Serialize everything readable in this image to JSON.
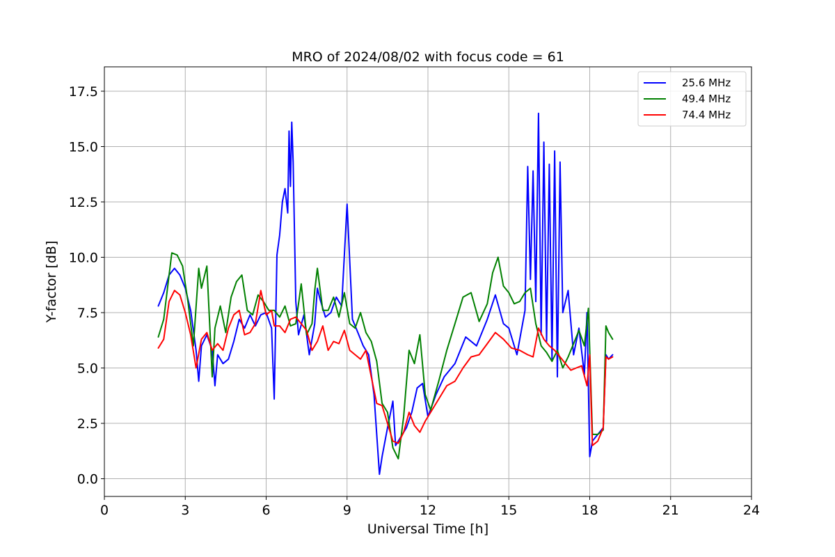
{
  "chart_data": {
    "type": "line",
    "title": "MRO of 2024/08/02 with focus code = 61",
    "xlabel": "Universal Time [h]",
    "ylabel": "Y-factor [dB]",
    "xlim": [
      0,
      24
    ],
    "ylim": [
      -0.8,
      18.6
    ],
    "xticks": [
      0,
      3,
      6,
      9,
      12,
      15,
      18,
      21,
      24
    ],
    "xtick_labels": [
      "0",
      "3",
      "6",
      "9",
      "12",
      "15",
      "18",
      "21",
      "24"
    ],
    "yticks": [
      0.0,
      2.5,
      5.0,
      7.5,
      10.0,
      12.5,
      15.0,
      17.5
    ],
    "ytick_labels": [
      "0.0",
      "2.5",
      "5.0",
      "7.5",
      "10.0",
      "12.5",
      "15.0",
      "17.5"
    ],
    "grid": true,
    "legend_position": "top-right",
    "series": [
      {
        "name": "25.6 MHz",
        "color": "#0000ff",
        "x": [
          2.0,
          2.2,
          2.4,
          2.6,
          2.8,
          3.0,
          3.2,
          3.4,
          3.5,
          3.6,
          3.8,
          4.0,
          4.1,
          4.2,
          4.4,
          4.6,
          4.8,
          5.0,
          5.2,
          5.4,
          5.6,
          5.8,
          6.0,
          6.2,
          6.3,
          6.4,
          6.5,
          6.6,
          6.7,
          6.8,
          6.85,
          6.9,
          6.95,
          7.0,
          7.1,
          7.2,
          7.4,
          7.6,
          7.8,
          7.9,
          8.0,
          8.2,
          8.4,
          8.6,
          8.8,
          9.0,
          9.2,
          9.4,
          9.6,
          9.8,
          10.0,
          10.2,
          10.3,
          10.5,
          10.7,
          10.8,
          11.0,
          11.2,
          11.4,
          11.6,
          11.8,
          12.0,
          12.3,
          12.6,
          13.0,
          13.4,
          13.8,
          14.2,
          14.5,
          14.8,
          15.0,
          15.3,
          15.6,
          15.7,
          15.8,
          15.9,
          16.0,
          16.1,
          16.2,
          16.3,
          16.4,
          16.5,
          16.6,
          16.7,
          16.8,
          16.9,
          17.0,
          17.2,
          17.4,
          17.6,
          17.8,
          17.9,
          18.0,
          18.1,
          18.3,
          18.5,
          18.6,
          18.7,
          18.85
        ],
        "y": [
          7.8,
          8.4,
          9.2,
          9.5,
          9.2,
          8.6,
          7.6,
          5.8,
          4.4,
          6.0,
          6.5,
          5.8,
          4.2,
          5.6,
          5.2,
          5.4,
          6.2,
          7.2,
          6.8,
          7.4,
          6.9,
          7.4,
          7.5,
          6.8,
          3.6,
          10.1,
          11.0,
          12.5,
          13.1,
          12.0,
          15.7,
          13.2,
          16.1,
          14.3,
          8.0,
          6.5,
          7.4,
          5.6,
          7.0,
          8.6,
          8.1,
          7.3,
          7.5,
          8.2,
          7.8,
          12.4,
          7.2,
          6.6,
          6.0,
          5.6,
          3.8,
          0.2,
          1.0,
          2.3,
          3.5,
          1.5,
          1.9,
          2.3,
          3.0,
          4.1,
          4.3,
          2.8,
          3.8,
          4.6,
          5.2,
          6.4,
          6.0,
          7.2,
          8.3,
          7.0,
          6.8,
          5.6,
          7.6,
          14.1,
          9.0,
          13.9,
          8.0,
          16.5,
          6.5,
          15.2,
          6.2,
          14.2,
          5.4,
          14.8,
          4.6,
          14.3,
          7.5,
          8.5,
          5.6,
          6.8,
          4.7,
          7.5,
          1.0,
          1.7,
          2.0,
          2.3,
          5.6,
          5.4,
          5.6
        ]
      },
      {
        "name": "49.4 MHz",
        "color": "#008000",
        "x": [
          2.0,
          2.2,
          2.4,
          2.5,
          2.7,
          2.9,
          3.1,
          3.3,
          3.5,
          3.6,
          3.8,
          4.0,
          4.1,
          4.3,
          4.5,
          4.7,
          4.9,
          5.1,
          5.3,
          5.5,
          5.7,
          5.9,
          6.1,
          6.3,
          6.5,
          6.7,
          6.9,
          7.1,
          7.3,
          7.5,
          7.7,
          7.8,
          7.9,
          8.1,
          8.3,
          8.5,
          8.7,
          8.9,
          9.1,
          9.3,
          9.5,
          9.7,
          9.9,
          10.1,
          10.3,
          10.5,
          10.7,
          10.9,
          11.1,
          11.3,
          11.5,
          11.7,
          11.9,
          12.1,
          12.4,
          12.7,
          13.0,
          13.3,
          13.6,
          13.9,
          14.2,
          14.4,
          14.6,
          14.8,
          15.0,
          15.2,
          15.4,
          15.6,
          15.8,
          16.0,
          16.2,
          16.4,
          16.6,
          16.8,
          17.0,
          17.2,
          17.4,
          17.6,
          17.8,
          17.95,
          18.1,
          18.3,
          18.5,
          18.6,
          18.7,
          18.85
        ],
        "y": [
          6.4,
          7.2,
          9.2,
          10.2,
          10.1,
          9.6,
          8.0,
          6.0,
          9.5,
          8.6,
          9.6,
          4.6,
          6.8,
          7.8,
          6.6,
          8.2,
          8.9,
          9.2,
          7.6,
          7.4,
          8.3,
          8.0,
          7.6,
          7.6,
          7.3,
          7.8,
          6.9,
          7.0,
          8.8,
          6.5,
          7.0,
          8.5,
          9.5,
          7.6,
          7.6,
          8.2,
          7.3,
          8.4,
          7.0,
          6.8,
          7.5,
          6.6,
          6.2,
          5.3,
          3.4,
          3.0,
          1.4,
          0.9,
          2.8,
          5.8,
          5.2,
          6.5,
          3.8,
          3.1,
          4.4,
          5.8,
          7.0,
          8.2,
          8.4,
          7.1,
          7.9,
          9.3,
          10.0,
          8.7,
          8.4,
          7.9,
          8.0,
          8.4,
          8.6,
          7.0,
          6.0,
          5.7,
          5.3,
          5.8,
          5.0,
          5.5,
          6.1,
          6.7,
          6.0,
          7.7,
          2.0,
          2.0,
          2.2,
          6.9,
          6.6,
          6.3
        ]
      },
      {
        "name": "74.4 MHz",
        "color": "#ff0000",
        "x": [
          2.0,
          2.2,
          2.4,
          2.6,
          2.8,
          3.0,
          3.2,
          3.4,
          3.6,
          3.8,
          4.0,
          4.2,
          4.4,
          4.6,
          4.8,
          5.0,
          5.2,
          5.4,
          5.6,
          5.8,
          6.0,
          6.2,
          6.3,
          6.5,
          6.7,
          6.9,
          7.1,
          7.3,
          7.5,
          7.7,
          7.9,
          8.1,
          8.3,
          8.5,
          8.7,
          8.9,
          9.1,
          9.3,
          9.5,
          9.7,
          9.9,
          10.1,
          10.3,
          10.5,
          10.7,
          10.9,
          11.1,
          11.3,
          11.5,
          11.7,
          11.9,
          12.1,
          12.4,
          12.7,
          13.0,
          13.3,
          13.6,
          13.9,
          14.2,
          14.5,
          14.8,
          15.1,
          15.4,
          15.7,
          15.9,
          16.1,
          16.3,
          16.5,
          16.7,
          16.9,
          17.1,
          17.3,
          17.5,
          17.7,
          17.9,
          18.0,
          18.1,
          18.3,
          18.5,
          18.6,
          18.7,
          18.85
        ],
        "y": [
          5.9,
          6.3,
          8.0,
          8.5,
          8.3,
          7.5,
          6.5,
          5.0,
          6.3,
          6.6,
          5.8,
          6.1,
          5.8,
          6.8,
          7.4,
          7.6,
          6.5,
          6.6,
          7.0,
          8.5,
          7.4,
          7.6,
          6.9,
          6.9,
          6.6,
          7.2,
          7.3,
          7.0,
          6.7,
          5.8,
          6.2,
          6.9,
          5.8,
          6.2,
          6.1,
          6.7,
          5.8,
          5.6,
          5.4,
          5.8,
          4.6,
          3.4,
          3.3,
          2.5,
          1.7,
          1.6,
          2.1,
          3.0,
          2.4,
          2.1,
          2.6,
          3.0,
          3.6,
          4.2,
          4.4,
          5.0,
          5.5,
          5.6,
          6.1,
          6.6,
          6.3,
          5.9,
          5.8,
          5.6,
          5.5,
          6.8,
          6.3,
          6.0,
          5.8,
          5.5,
          5.2,
          4.9,
          5.0,
          5.1,
          4.2,
          5.6,
          1.5,
          1.7,
          2.3,
          5.5,
          5.4,
          5.5
        ]
      }
    ]
  }
}
